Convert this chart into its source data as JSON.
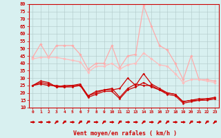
{
  "x": [
    0,
    1,
    2,
    3,
    4,
    5,
    6,
    7,
    8,
    9,
    10,
    11,
    12,
    13,
    14,
    15,
    16,
    17,
    18,
    19,
    20,
    21,
    22,
    23
  ],
  "series": [
    {
      "values": [
        44,
        53,
        44,
        52,
        52,
        52,
        46,
        36,
        40,
        40,
        52,
        37,
        45,
        46,
        79,
        65,
        52,
        49,
        40,
        29,
        45,
        29,
        29,
        28
      ],
      "color": "#ffaaaa",
      "lw": 0.9,
      "marker": "D",
      "ms": 1.8,
      "zorder": 2
    },
    {
      "values": [
        43,
        44,
        44,
        44,
        43,
        42,
        41,
        34,
        38,
        38,
        40,
        36,
        39,
        40,
        47,
        43,
        39,
        38,
        33,
        27,
        29,
        29,
        28,
        27
      ],
      "color": "#ffbbbb",
      "lw": 0.9,
      "marker": "D",
      "ms": 1.8,
      "zorder": 2
    },
    {
      "values": [
        25,
        28,
        27,
        24,
        25,
        25,
        26,
        18,
        20,
        22,
        22,
        23,
        30,
        25,
        33,
        26,
        23,
        20,
        19,
        14,
        15,
        16,
        16,
        17
      ],
      "color": "#cc0000",
      "lw": 0.9,
      "marker": "D",
      "ms": 1.5,
      "zorder": 3
    },
    {
      "values": [
        25,
        27,
        26,
        24,
        24,
        25,
        25,
        17,
        19,
        21,
        21,
        16,
        22,
        24,
        27,
        24,
        22,
        19,
        18,
        13,
        14,
        15,
        15,
        16
      ],
      "color": "#cc0000",
      "lw": 0.9,
      "marker": "D",
      "ms": 1.5,
      "zorder": 3
    },
    {
      "values": [
        25,
        26,
        25,
        25,
        24,
        24,
        25,
        18,
        21,
        22,
        23,
        17,
        23,
        26,
        25,
        25,
        22,
        20,
        19,
        14,
        15,
        15,
        16,
        16
      ],
      "color": "#cc0000",
      "lw": 0.9,
      "marker": "D",
      "ms": 1.5,
      "zorder": 3
    }
  ],
  "arrow_angles": [
    0,
    0,
    0,
    45,
    45,
    0,
    45,
    45,
    0,
    45,
    0,
    45,
    0,
    0,
    45,
    0,
    45,
    45,
    0,
    0,
    45,
    0,
    45,
    45
  ],
  "ylim": [
    10,
    80
  ],
  "yticks": [
    10,
    15,
    20,
    25,
    30,
    35,
    40,
    45,
    50,
    55,
    60,
    65,
    70,
    75,
    80
  ],
  "xlabel": "Vent moyen/en rafales ( km/h )",
  "bg_color": "#d8f0f0",
  "grid_color": "#b0c8c8",
  "axis_color": "#cc0000",
  "label_color": "#cc0000",
  "arrow_color": "#cc0000"
}
